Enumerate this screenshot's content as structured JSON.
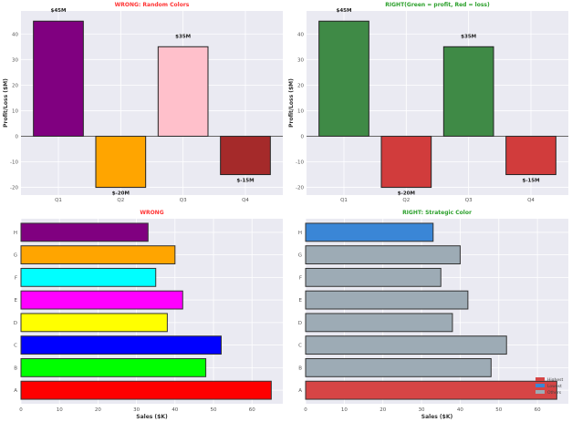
{
  "chart_data": [
    {
      "type": "bar",
      "title": "WRONG: Random Colors",
      "title_color": "#ff3333",
      "categories": [
        "Q1",
        "Q2",
        "Q3",
        "Q4"
      ],
      "values": [
        45,
        -20,
        35,
        -15
      ],
      "colors": [
        "#800080",
        "#ffa500",
        "#ffc0cb",
        "#a52a2a"
      ],
      "data_labels": [
        "$45M",
        "$-20M",
        "$35M",
        "$-15M"
      ],
      "data_label_color": "#222222",
      "xlabel": "",
      "ylabel": "Profit/Loss ($M)",
      "ylim": [
        -23,
        49
      ],
      "yticks": [
        -20,
        -10,
        0,
        10,
        20,
        30,
        40
      ],
      "grid": true
    },
    {
      "type": "bar",
      "title": "RIGHT(Green = profit, Red = loss)",
      "title_color": "#2ca02c",
      "categories": [
        "Q1",
        "Q2",
        "Q3",
        "Q4"
      ],
      "values": [
        45,
        -20,
        35,
        -15
      ],
      "colors": [
        "#3f8a46",
        "#d13c3c",
        "#3f8a46",
        "#d13c3c"
      ],
      "data_labels": [
        "$45M",
        "$-20M",
        "$35M",
        "$-15M"
      ],
      "data_label_color": "#ffffff",
      "xlabel": "",
      "ylabel": "Profit/Loss ($M)",
      "ylim": [
        -23,
        49
      ],
      "yticks": [
        -20,
        -10,
        0,
        10,
        20,
        30,
        40
      ],
      "grid": true
    },
    {
      "type": "bar",
      "orientation": "horizontal",
      "title": "WRONG",
      "title_color": "#ff3333",
      "categories": [
        "A",
        "B",
        "C",
        "D",
        "E",
        "F",
        "G",
        "H"
      ],
      "values": [
        65,
        48,
        52,
        38,
        42,
        35,
        40,
        33
      ],
      "colors": [
        "#ff0000",
        "#00ff00",
        "#0000ff",
        "#ffff00",
        "#ff00ff",
        "#00ffff",
        "#ffa500",
        "#800080"
      ],
      "xlabel": "Sales ($K)",
      "ylabel": "",
      "xlim": [
        0,
        68
      ],
      "xticks": [
        0,
        10,
        20,
        30,
        40,
        50,
        60
      ],
      "grid": true
    },
    {
      "type": "bar",
      "orientation": "horizontal",
      "title": "RIGHT: Strategic Color",
      "title_color": "#2ca02c",
      "categories": [
        "A",
        "B",
        "C",
        "D",
        "E",
        "F",
        "G",
        "H"
      ],
      "values": [
        65,
        48,
        52,
        38,
        42,
        35,
        40,
        33
      ],
      "colors": [
        "#d64545",
        "#9dabb5",
        "#9dabb5",
        "#9dabb5",
        "#9dabb5",
        "#9dabb5",
        "#9dabb5",
        "#3a86d6"
      ],
      "xlabel": "Sales ($K)",
      "ylabel": "",
      "xlim": [
        0,
        68
      ],
      "xticks": [
        0,
        10,
        20,
        30,
        40,
        50,
        60
      ],
      "grid": true,
      "legend": {
        "position": "lower-right",
        "entries": [
          {
            "label": "Highest",
            "color": "#d64545"
          },
          {
            "label": "Lowest",
            "color": "#3a86d6"
          },
          {
            "label": "Others",
            "color": "#9dabb5"
          }
        ]
      }
    }
  ]
}
